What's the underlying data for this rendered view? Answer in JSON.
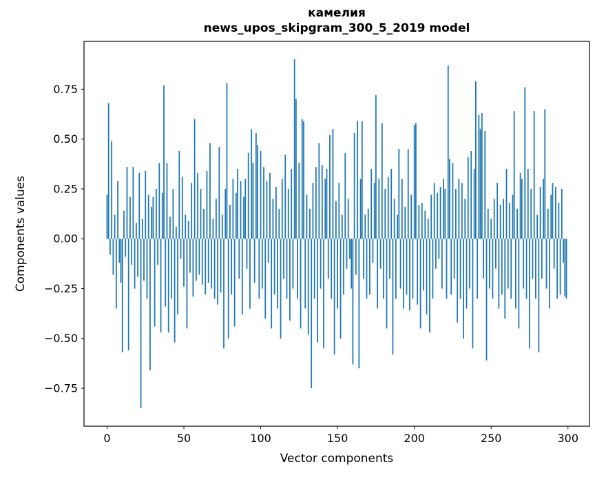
{
  "figure": {
    "title_line1": "камелия",
    "title_line2": "news_upos_skipgram_300_5_2019 model",
    "xlabel": "Vector components",
    "ylabel": "Components values"
  },
  "chart_data": {
    "type": "bar",
    "title": "камелия\nnews_upos_skipgram_300_5_2019 model",
    "xlabel": "Vector components",
    "ylabel": "Components values",
    "legend": "none",
    "grid": false,
    "bar_color": "#1f77b4",
    "xlim": [
      -15,
      314
    ],
    "ylim": [
      -0.94,
      0.99
    ],
    "xticks": {
      "values": [
        0,
        50,
        100,
        150,
        200,
        250,
        300
      ],
      "labels": [
        "0",
        "50",
        "100",
        "150",
        "200",
        "250",
        "300"
      ]
    },
    "yticks": {
      "values": [
        -0.75,
        -0.5,
        -0.25,
        0,
        0.25,
        0.5,
        0.75
      ],
      "labels": [
        "−0.75",
        "−0.50",
        "−0.25",
        "0.00",
        "0.25",
        "0.50",
        "0.75"
      ]
    },
    "x_start": 0,
    "values": [
      0.22,
      0.68,
      -0.08,
      0.49,
      -0.18,
      0.12,
      -0.35,
      0.29,
      -0.12,
      -0.22,
      -0.57,
      0.14,
      -0.09,
      0.36,
      -0.56,
      0.21,
      -0.13,
      0.36,
      -0.25,
      0.08,
      -0.19,
      0.33,
      -0.85,
      0.1,
      -0.21,
      0.34,
      -0.3,
      0.22,
      -0.66,
      0.16,
      0.21,
      -0.44,
      0.25,
      -0.13,
      0.38,
      -0.47,
      0.23,
      0.77,
      -0.34,
      0.38,
      -0.47,
      0.11,
      -0.3,
      0.25,
      -0.52,
      0.06,
      -0.38,
      0.44,
      -0.1,
      0.31,
      -0.24,
      0.12,
      -0.45,
      0.09,
      -0.17,
      0.28,
      -0.29,
      0.6,
      -0.21,
      0.33,
      -0.18,
      0.25,
      -0.23,
      0.15,
      -0.28,
      0.34,
      -0.22,
      0.48,
      -0.25,
      0.1,
      -0.3,
      0.2,
      -0.33,
      0.46,
      -0.27,
      0.12,
      -0.55,
      0.25,
      0.78,
      -0.5,
      0.17,
      -0.28,
      0.3,
      -0.44,
      0.23,
      0.35,
      -0.2,
      0.29,
      -0.38,
      0.21,
      0.3,
      -0.15,
      0.43,
      -0.35,
      0.55,
      0.38,
      -0.22,
      0.53,
      0.47,
      -0.3,
      0.44,
      -0.25,
      0.36,
      -0.4,
      0.29,
      -0.12,
      0.33,
      -0.45,
      0.2,
      -0.28,
      0.26,
      -0.35,
      0.15,
      -0.5,
      0.3,
      -0.2,
      0.42,
      -0.3,
      0.25,
      -0.41,
      0.35,
      -0.25,
      0.9,
      0.7,
      -0.3,
      0.38,
      -0.45,
      0.6,
      0.59,
      -0.35,
      0.22,
      -0.48,
      0.15,
      -0.75,
      0.28,
      -0.3,
      0.36,
      -0.52,
      0.48,
      -0.25,
      0.37,
      -0.55,
      0.3,
      0.35,
      -0.2,
      0.52,
      -0.3,
      0.55,
      -0.58,
      0.19,
      -0.35,
      0.28,
      -0.5,
      0.12,
      -0.28,
      0.43,
      -0.15,
      0.2,
      -0.1,
      -0.25,
      -0.63,
      0.53,
      -0.18,
      0.59,
      -0.65,
      0.3,
      0.59,
      -0.2,
      0.12,
      -0.3,
      0.15,
      -0.28,
      0.35,
      -0.12,
      0.28,
      0.72,
      -0.35,
      0.3,
      -0.15,
      0.58,
      -0.3,
      0.25,
      -0.45,
      0.31,
      -0.2,
      0.35,
      -0.58,
      0.2,
      -0.3,
      0.12,
      0.45,
      -0.25,
      0.3,
      -0.35,
      0.16,
      -0.28,
      0.45,
      -0.36,
      0.22,
      -0.3,
      0.57,
      0.58,
      -0.33,
      0.17,
      -0.45,
      0.18,
      -0.26,
      0.14,
      -0.38,
      0.1,
      -0.47,
      0.22,
      -0.3,
      0.28,
      -0.15,
      0.23,
      -0.1,
      0.26,
      -0.25,
      0.3,
      0.25,
      -0.3,
      0.87,
      0.4,
      -0.28,
      0.38,
      -0.2,
      0.25,
      -0.42,
      0.3,
      -0.3,
      0.28,
      -0.5,
      0.2,
      -0.35,
      0.41,
      -0.25,
      0.44,
      -0.55,
      0.35,
      0.79,
      -0.3,
      0.62,
      0.55,
      0.63,
      -0.2,
      0.54,
      -0.61,
      0.15,
      -0.25,
      0.1,
      -0.3,
      0.2,
      -0.15,
      0.28,
      -0.35,
      0.17,
      -0.28,
      0.2,
      -0.4,
      0.35,
      -0.25,
      0.18,
      -0.3,
      0.22,
      0.64,
      -0.35,
      0.15,
      -0.45,
      0.33,
      0.3,
      -0.25,
      0.76,
      -0.3,
      0.35,
      -0.55,
      0.25,
      -0.2,
      0.64,
      -0.3,
      0.12,
      -0.57,
      0.26,
      -0.2,
      0.3,
      0.65,
      -0.25,
      0.15,
      -0.35,
      0.22,
      0.28,
      -0.15,
      0.26,
      -0.3,
      0.18,
      -0.28,
      0.25,
      -0.12,
      -0.29,
      -0.3
    ]
  }
}
